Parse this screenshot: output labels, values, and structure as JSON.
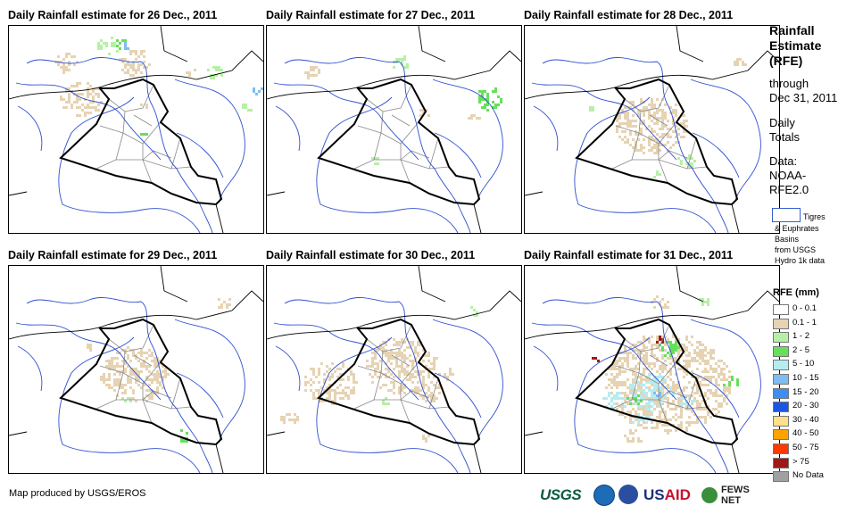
{
  "panels": [
    {
      "title": "Daily Rainfall estimate for 26 Dec., 2011"
    },
    {
      "title": "Daily Rainfall estimate for 27 Dec., 2011"
    },
    {
      "title": "Daily Rainfall estimate for 28 Dec., 2011"
    },
    {
      "title": "Daily Rainfall estimate for 29 Dec., 2011"
    },
    {
      "title": "Daily Rainfall estimate for 30 Dec., 2011"
    },
    {
      "title": "Daily Rainfall estimate for 31 Dec., 2011"
    }
  ],
  "sidebar": {
    "title_lines": [
      "Rainfall",
      "Estimate",
      "(RFE)"
    ],
    "through_lines": [
      "through",
      "Dec 31, 2011"
    ],
    "daily_lines": [
      "Daily",
      "Totals"
    ],
    "data_lines": [
      "Data:",
      "NOAA-",
      "RFE2.0"
    ],
    "basin_lines": [
      "Tigres",
      "& Euphrates",
      "Basins",
      "from USGS",
      "Hydro 1k data"
    ]
  },
  "legend": {
    "title": "RFE (mm)",
    "items": [
      {
        "label": "0 - 0.1",
        "color": "#ffffff"
      },
      {
        "label": "0.1 - 1",
        "color": "#e6d3b3"
      },
      {
        "label": "1 - 2",
        "color": "#b6f0a6"
      },
      {
        "label": "2 - 5",
        "color": "#66e05a"
      },
      {
        "label": "5 - 10",
        "color": "#b4ecf0"
      },
      {
        "label": "10 - 15",
        "color": "#7fbcf2"
      },
      {
        "label": "15 - 20",
        "color": "#3d8ef0"
      },
      {
        "label": "20 - 30",
        "color": "#1a56e0"
      },
      {
        "label": "30 - 40",
        "color": "#ffe08a"
      },
      {
        "label": "40 - 50",
        "color": "#ffa200"
      },
      {
        "label": "50 - 75",
        "color": "#ff3a00"
      },
      {
        "label": "> 75",
        "color": "#a01818"
      },
      {
        "label": "No Data",
        "color": "#a0a0a0"
      }
    ]
  },
  "footer": {
    "credit": "Map produced by USGS/EROS",
    "usgs": "USGS",
    "usaid_a": "US",
    "usaid_b": "AID",
    "fews": "FEWS NET"
  }
}
